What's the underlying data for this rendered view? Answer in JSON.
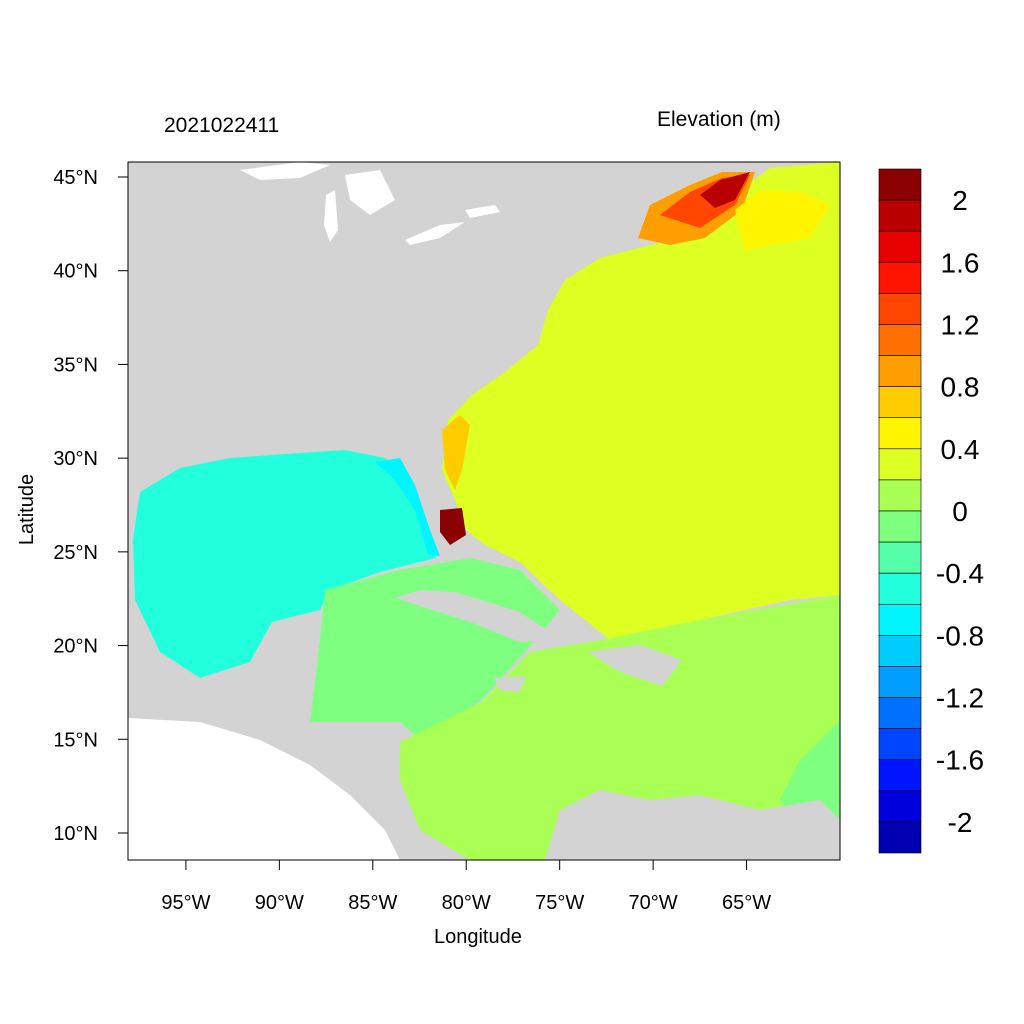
{
  "title_left": "2021022411",
  "title_right": "Elevation (m)",
  "xlabel": "Longitude",
  "ylabel": "Latitude",
  "x_ticks": [
    "95°W",
    "90°W",
    "85°W",
    "80°W",
    "75°W",
    "70°W",
    "65°W"
  ],
  "x_tick_values": [
    -95,
    -90,
    -85,
    -80,
    -75,
    -70,
    -65
  ],
  "y_ticks": [
    "45°N",
    "40°N",
    "35°N",
    "30°N",
    "25°N",
    "20°N",
    "15°N",
    "10°N"
  ],
  "y_tick_values": [
    45,
    40,
    35,
    30,
    25,
    20,
    15,
    10
  ],
  "lon_range": [
    -98.1,
    -60.0
  ],
  "lat_range": [
    8.56,
    45.8
  ],
  "colorbar": {
    "labels": [
      "2",
      "1.6",
      "1.2",
      "0.8",
      "0.4",
      "0",
      "-0.4",
      "-0.8",
      "-1.2",
      "-1.6",
      "-2"
    ],
    "colors": [
      "#8B0000",
      "#B90000",
      "#E60000",
      "#FF1400",
      "#FF4600",
      "#FF7000",
      "#FF9E00",
      "#FFCC00",
      "#FFF500",
      "#DDFF22",
      "#AAFF55",
      "#7FFF80",
      "#55FFAA",
      "#22FFDD",
      "#00F5FF",
      "#00CCFF",
      "#009EFF",
      "#0070FF",
      "#0046FF",
      "#0014FF",
      "#0000DD",
      "#0000B0"
    ]
  },
  "land_color": "#D3D3D3"
}
